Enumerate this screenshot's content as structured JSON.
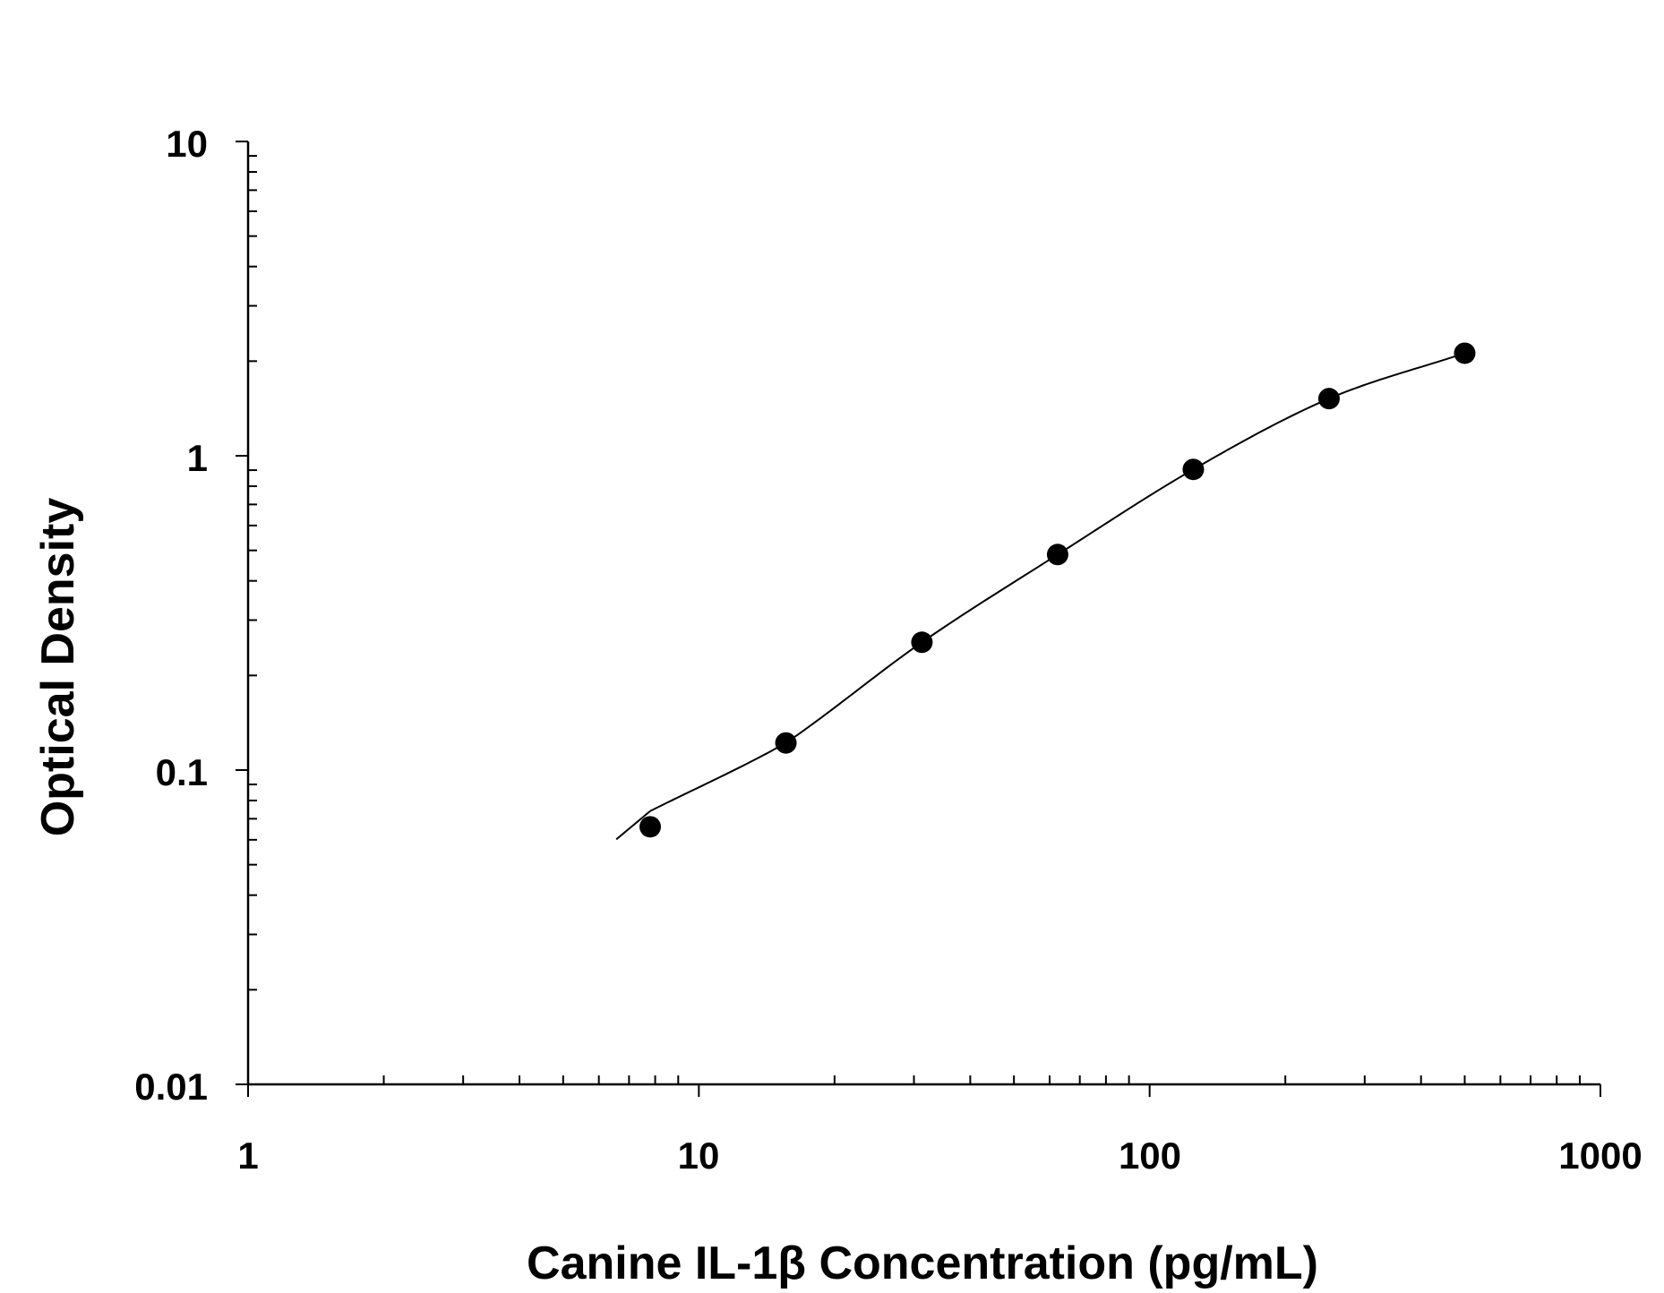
{
  "chart_data": {
    "type": "scatter",
    "title": "",
    "xlabel": "Canine IL-1β Concentration (pg/mL)",
    "ylabel": "Optical Density",
    "xscale": "log",
    "yscale": "log",
    "xlim": [
      1,
      1000
    ],
    "ylim": [
      0.01,
      10
    ],
    "x_tick_labels": [
      "1",
      "10",
      "100",
      "1000"
    ],
    "y_tick_labels": [
      "0.01",
      "0.1",
      "1",
      "10"
    ],
    "grid": false,
    "legend": "none",
    "series": [
      {
        "x": [
          7.8,
          15.6,
          31.25,
          62.5,
          125,
          250,
          500
        ],
        "values": [
          0.066,
          0.122,
          0.255,
          0.485,
          0.905,
          1.52,
          2.12
        ],
        "marker": "filled-circle",
        "fit_curve": true
      }
    ],
    "colors": {
      "marker": "#000000",
      "line": "#000000",
      "axis": "#000000"
    }
  }
}
